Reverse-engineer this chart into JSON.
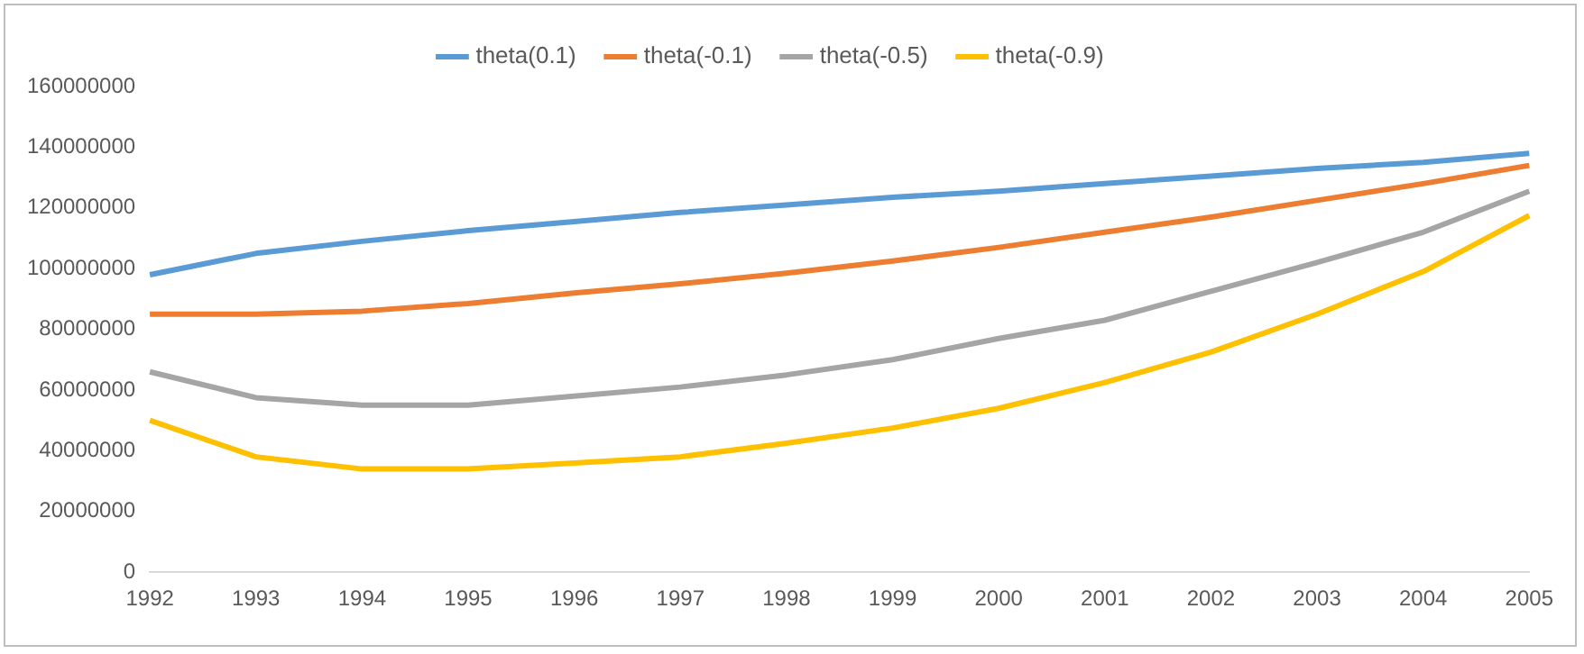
{
  "chart_data": {
    "type": "line",
    "categories": [
      "1992",
      "1993",
      "1994",
      "1995",
      "1996",
      "1997",
      "1998",
      "1999",
      "2000",
      "2001",
      "2002",
      "2003",
      "2004",
      "2005"
    ],
    "series": [
      {
        "name": "theta(0.1)",
        "color": "#5b9bd5",
        "values": [
          98000000,
          105000000,
          109000000,
          112500000,
          115500000,
          118500000,
          121000000,
          123500000,
          125500000,
          128000000,
          130500000,
          133000000,
          135000000,
          138000000
        ]
      },
      {
        "name": "theta(-0.1)",
        "color": "#ed7d31",
        "values": [
          85000000,
          85000000,
          86000000,
          88500000,
          92000000,
          95000000,
          98500000,
          102500000,
          107000000,
          112000000,
          117000000,
          122500000,
          128000000,
          134000000
        ]
      },
      {
        "name": "theta(-0.5)",
        "color": "#a5a5a5",
        "values": [
          66000000,
          57500000,
          55000000,
          55000000,
          58000000,
          61000000,
          65000000,
          70000000,
          77000000,
          83000000,
          92500000,
          102000000,
          112000000,
          125500000
        ]
      },
      {
        "name": "theta(-0.9)",
        "color": "#ffc000",
        "values": [
          50000000,
          38000000,
          34000000,
          34000000,
          36000000,
          38000000,
          42500000,
          47500000,
          54000000,
          62500000,
          72500000,
          85000000,
          99000000,
          117500000
        ]
      }
    ],
    "ylim": [
      0,
      160000000
    ],
    "yticks": [
      0,
      20000000,
      40000000,
      60000000,
      80000000,
      100000000,
      120000000,
      140000000,
      160000000
    ],
    "grid": false,
    "legend": "top",
    "marker": "none",
    "line_style": "solid"
  }
}
